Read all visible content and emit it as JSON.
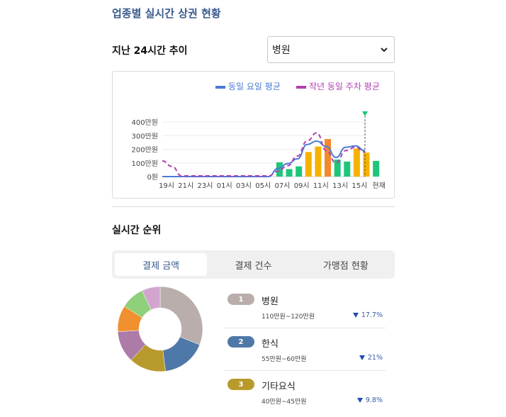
{
  "page": {
    "title": "업종별 실시간 상권 현황"
  },
  "trend": {
    "label": "지난 24시간 추이",
    "select_value": "병원"
  },
  "legend": {
    "weekday_avg": "동일 요일 평균",
    "lastyear_avg": "작년 동일 주차 평균"
  },
  "colors": {
    "weekday_line": "#4a7bd4",
    "lastyear_line": "#b23fb0",
    "bar_green": "#1fc67a",
    "bar_yellow": "#f5b300",
    "bar_orange": "#f3892a",
    "marker": "#1fc67a"
  },
  "chart_data": {
    "type": "bar",
    "y_ticks": [
      "400만원",
      "300만원",
      "200만원",
      "100만원",
      "0원"
    ],
    "x_ticks": [
      "19시",
      "21시",
      "23시",
      "01시",
      "03시",
      "05시",
      "07시",
      "09시",
      "11시",
      "13시",
      "15시",
      "현재"
    ],
    "ylim": [
      0,
      400
    ],
    "unit": "만원",
    "bars": [
      {
        "hour": 7,
        "value": 105,
        "color": "green"
      },
      {
        "hour": 8,
        "value": 55,
        "color": "green"
      },
      {
        "hour": 9,
        "value": 75,
        "color": "green"
      },
      {
        "hour": 10,
        "value": 180,
        "color": "yellow"
      },
      {
        "hour": 11,
        "value": 220,
        "color": "yellow"
      },
      {
        "hour": 12,
        "value": 275,
        "color": "orange"
      },
      {
        "hour": 13,
        "value": 125,
        "color": "green"
      },
      {
        "hour": 14,
        "value": 110,
        "color": "green"
      },
      {
        "hour": 15,
        "value": 205,
        "color": "yellow"
      },
      {
        "hour": 16,
        "value": 175,
        "color": "yellow"
      },
      {
        "hour": 17,
        "value": 115,
        "color": "green"
      }
    ],
    "series": [
      {
        "name": "동일 요일 평균",
        "style": "solid",
        "values": [
          0,
          0,
          0,
          0,
          0,
          0,
          0,
          0,
          0,
          0,
          0,
          0,
          60,
          95,
          130,
          235,
          260,
          220,
          140,
          215,
          225,
          190
        ]
      },
      {
        "name": "작년 동일 주차 평균",
        "style": "dashed",
        "values": [
          115,
          75,
          5,
          5,
          5,
          5,
          5,
          5,
          5,
          5,
          5,
          5,
          40,
          80,
          150,
          260,
          320,
          190,
          100,
          190,
          215,
          180
        ]
      }
    ]
  },
  "ranking": {
    "label": "실시간 순위",
    "tabs": [
      "결제 금액",
      "결제 건수",
      "가맹점 현황"
    ],
    "items": [
      {
        "rank": "1",
        "name": "병원",
        "range": "110만원~120만원",
        "change": "17.7%",
        "color": "#b9aeab"
      },
      {
        "rank": "2",
        "name": "한식",
        "range": "55만원~60만원",
        "change": "21%",
        "color": "#4e78a8"
      },
      {
        "rank": "3",
        "name": "기타요식",
        "range": "40만원~45만원",
        "change": "9.8%",
        "color": "#b89a2c"
      }
    ]
  },
  "donut_data": {
    "type": "pie",
    "slices": [
      {
        "value": 31,
        "color": "#b9aeab"
      },
      {
        "value": 17,
        "color": "#4e78a8"
      },
      {
        "value": 14,
        "color": "#b89a2c"
      },
      {
        "value": 12,
        "color": "#ac7ba8"
      },
      {
        "value": 10,
        "color": "#f0902e"
      },
      {
        "value": 9,
        "color": "#8fd07a"
      },
      {
        "value": 7,
        "color": "#d2a5cf"
      }
    ]
  }
}
